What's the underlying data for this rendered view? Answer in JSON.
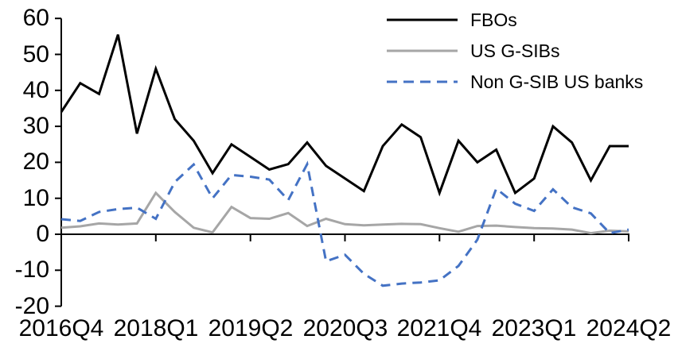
{
  "chart_data": {
    "type": "line",
    "title": "",
    "background": "#ffffff",
    "axis_color": "#000000",
    "grid": false,
    "legend_position": "top-right",
    "ylim": [
      -20,
      60
    ],
    "y_ticks": [
      60,
      50,
      40,
      30,
      20,
      10,
      0,
      -10,
      -20
    ],
    "x_tick_labels": [
      "2016Q4",
      "2018Q1",
      "2019Q2",
      "2020Q3",
      "2021Q4",
      "2023Q1",
      "2024Q2"
    ],
    "x_tick_indices": [
      0,
      5,
      10,
      15,
      20,
      25,
      30
    ],
    "x_categories": [
      "2016Q4",
      "2017Q1",
      "2017Q2",
      "2017Q3",
      "2017Q4",
      "2018Q1",
      "2018Q2",
      "2018Q3",
      "2018Q4",
      "2019Q1",
      "2019Q2",
      "2019Q3",
      "2019Q4",
      "2020Q1",
      "2020Q2",
      "2020Q3",
      "2020Q4",
      "2021Q1",
      "2021Q2",
      "2021Q3",
      "2021Q4",
      "2022Q1",
      "2022Q2",
      "2022Q3",
      "2022Q4",
      "2023Q1",
      "2023Q2",
      "2023Q3",
      "2023Q4",
      "2024Q1",
      "2024Q2"
    ],
    "series": [
      {
        "name": "FBOs",
        "color": "#000000",
        "dash": "solid",
        "values": [
          34,
          42,
          39,
          55.5,
          28,
          46,
          32,
          26,
          17,
          25,
          21.5,
          18,
          19.5,
          25.5,
          19,
          15.5,
          12,
          24.5,
          30.5,
          27,
          11.5,
          26,
          20,
          23.5,
          11.5,
          15.5,
          30,
          25.5,
          15,
          24.5,
          24.5
        ]
      },
      {
        "name": "US G-SIBs",
        "color": "#a6a6a6",
        "dash": "solid",
        "values": [
          1.8,
          2.2,
          3,
          2.7,
          3,
          11.5,
          6.2,
          1.8,
          0.5,
          7.6,
          4.5,
          4.3,
          5.9,
          2.3,
          4.3,
          2.8,
          2.5,
          2.7,
          2.9,
          2.8,
          1.7,
          0.7,
          2.3,
          2.4,
          2,
          1.7,
          1.6,
          1.3,
          0.3,
          1,
          0.8
        ]
      },
      {
        "name": "Non G-SIB US banks",
        "color": "#4472c4",
        "dash": "dashed",
        "values": [
          4.2,
          3.7,
          6.2,
          7,
          7.4,
          4.3,
          14.5,
          19.4,
          10,
          16.5,
          16,
          15.2,
          9.5,
          19.5,
          -7.5,
          -5.7,
          -11,
          -14.3,
          -13.7,
          -13.4,
          -12.8,
          -8.8,
          -1.5,
          12.7,
          8.5,
          6.5,
          12.5,
          7.5,
          5.8,
          0.3,
          1.3
        ]
      }
    ]
  }
}
